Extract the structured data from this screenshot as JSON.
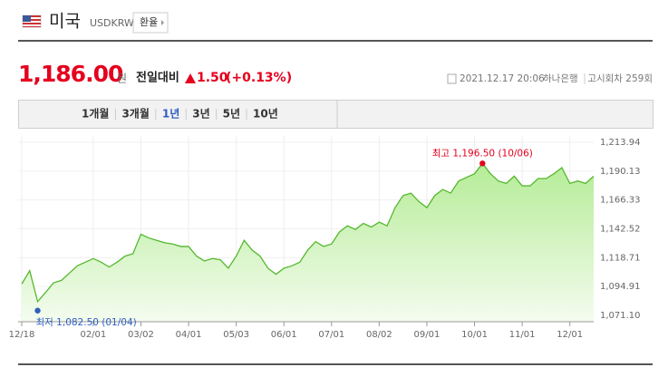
{
  "header": {
    "country": "미국",
    "code": "USDKRW",
    "button": "환율"
  },
  "quote": {
    "price": "1,186.00",
    "unit": "원",
    "change_label": "전일대비",
    "change": "1.50",
    "change_pct": "(+0.13%)",
    "timestamp": "2021.12.17 20:06",
    "bank": "하나은행",
    "notice": "고시회차 259회"
  },
  "tabs": {
    "items": [
      "1개월",
      "3개월",
      "1년",
      "3년",
      "5년",
      "10년"
    ],
    "selected": 2
  },
  "chart_data": {
    "type": "area",
    "color": "#55b82e",
    "grid": true,
    "categories": [
      "12/18",
      null,
      null,
      null,
      null,
      null,
      null,
      null,
      null,
      "02/01",
      null,
      null,
      null,
      null,
      null,
      "03/02",
      null,
      null,
      null,
      null,
      null,
      "04/01",
      null,
      null,
      null,
      null,
      null,
      "05/03",
      null,
      null,
      null,
      null,
      null,
      "06/01",
      null,
      null,
      null,
      null,
      null,
      "07/01",
      null,
      null,
      null,
      null,
      null,
      "08/02",
      null,
      null,
      null,
      null,
      null,
      "09/01",
      null,
      null,
      null,
      null,
      null,
      "10/01",
      null,
      null,
      null,
      null,
      null,
      "11/01",
      null,
      null,
      null,
      null,
      null,
      "12/01",
      null,
      null,
      null
    ],
    "values": [
      1097,
      1108,
      1082.5,
      1090,
      1098,
      1100,
      1106,
      1112,
      1115,
      1118,
      1115,
      1111,
      1115,
      1120,
      1122,
      1138,
      1135,
      1133,
      1131,
      1130,
      1128,
      1128,
      1120,
      1116,
      1118,
      1117,
      1110,
      1120,
      1133,
      1125,
      1120,
      1110,
      1105,
      1110,
      1112,
      1115,
      1125,
      1132,
      1128,
      1130,
      1140,
      1145,
      1142,
      1147,
      1144,
      1148,
      1145,
      1160,
      1170,
      1172,
      1165,
      1160,
      1170,
      1175,
      1172,
      1182,
      1185,
      1188,
      1196.5,
      1188,
      1182,
      1180,
      1186,
      1178,
      1178,
      1184,
      1184,
      1188,
      1193,
      1180,
      1182,
      1180,
      1186
    ],
    "ylim": [
      1071.1,
      1213.94
    ],
    "yticks": [
      {
        "value": 1071.1,
        "label": "1,071.10"
      },
      {
        "value": 1094.91,
        "label": "1,094.91"
      },
      {
        "value": 1118.71,
        "label": "1,118.71"
      },
      {
        "value": 1142.52,
        "label": "1,142.52"
      },
      {
        "value": 1166.33,
        "label": "1,166.33"
      },
      {
        "value": 1190.13,
        "label": "1,190.13"
      },
      {
        "value": 1213.94,
        "label": "1,213.94"
      }
    ],
    "annotations": {
      "max": "최고 1,196.50 (10/06)",
      "min": "최저 1,082.50 (01/04)"
    },
    "max_color": "#e5001e",
    "min_color": "#2f5fc0"
  }
}
